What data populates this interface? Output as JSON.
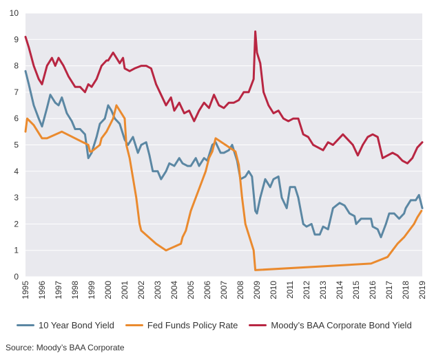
{
  "chart_data": {
    "type": "line",
    "title": "",
    "xlabel": "",
    "ylabel": "",
    "x_ticks": [
      "1995",
      "1996",
      "1997",
      "1998",
      "1999",
      "2000",
      "2001",
      "2002",
      "2003",
      "2004",
      "2005",
      "2006",
      "2007",
      "2008",
      "2009",
      "2010",
      "2011",
      "2012",
      "2013",
      "2014",
      "2015",
      "2016",
      "2017",
      "2018",
      "2019"
    ],
    "y_ticks": [
      "0",
      "1",
      "2",
      "3",
      "4",
      "5",
      "6",
      "7",
      "8",
      "9",
      "10"
    ],
    "xlim": [
      1995,
      2019
    ],
    "ylim": [
      0,
      10
    ],
    "grid": "horizontal",
    "background": "#e9e9ee",
    "legend_position": "bottom",
    "series": [
      {
        "name": "10 Year Bond Yield",
        "color": "#5b87a3",
        "x": [
          1995.0,
          1995.2,
          1995.5,
          1995.8,
          1996.0,
          1996.3,
          1996.5,
          1996.8,
          1997.0,
          1997.2,
          1997.5,
          1997.8,
          1998.0,
          1998.3,
          1998.6,
          1998.8,
          1999.0,
          1999.3,
          1999.5,
          1999.8,
          2000.0,
          2000.2,
          2000.4,
          2000.7,
          2001.0,
          2001.2,
          2001.5,
          2001.8,
          2002.0,
          2002.3,
          2002.5,
          2002.7,
          2003.0,
          2003.2,
          2003.5,
          2003.7,
          2004.0,
          2004.3,
          2004.5,
          2004.8,
          2005.0,
          2005.3,
          2005.5,
          2005.8,
          2006.0,
          2006.3,
          2006.5,
          2006.8,
          2007.0,
          2007.3,
          2007.5,
          2007.8,
          2008.0,
          2008.3,
          2008.5,
          2008.7,
          2008.9,
          2009.0,
          2009.2,
          2009.5,
          2009.8,
          2010.0,
          2010.3,
          2010.5,
          2010.8,
          2011.0,
          2011.3,
          2011.5,
          2011.8,
          2012.0,
          2012.3,
          2012.5,
          2012.8,
          2013.0,
          2013.3,
          2013.6,
          2013.8,
          2014.0,
          2014.3,
          2014.6,
          2014.9,
          2015.0,
          2015.3,
          2015.6,
          2015.9,
          2016.0,
          2016.3,
          2016.5,
          2016.8,
          2017.0,
          2017.3,
          2017.6,
          2017.9,
          2018.0,
          2018.3,
          2018.6,
          2018.8,
          2019.0
        ],
        "values": [
          7.8,
          7.3,
          6.5,
          6.0,
          5.7,
          6.4,
          6.9,
          6.6,
          6.5,
          6.8,
          6.2,
          5.9,
          5.6,
          5.6,
          5.4,
          4.5,
          4.7,
          5.3,
          5.8,
          6.0,
          6.5,
          6.3,
          6.0,
          5.8,
          5.2,
          5.0,
          5.3,
          4.7,
          5.0,
          5.1,
          4.6,
          4.0,
          4.0,
          3.7,
          4.0,
          4.3,
          4.2,
          4.5,
          4.3,
          4.2,
          4.2,
          4.5,
          4.2,
          4.5,
          4.4,
          5.0,
          5.1,
          4.7,
          4.7,
          4.8,
          5.0,
          4.4,
          3.7,
          3.8,
          4.0,
          3.8,
          2.5,
          2.4,
          3.0,
          3.7,
          3.4,
          3.7,
          3.8,
          3.0,
          2.6,
          3.4,
          3.4,
          3.0,
          2.0,
          1.9,
          2.0,
          1.6,
          1.6,
          1.9,
          1.8,
          2.6,
          2.7,
          2.8,
          2.7,
          2.4,
          2.3,
          2.0,
          2.2,
          2.2,
          2.2,
          1.9,
          1.8,
          1.5,
          2.0,
          2.4,
          2.4,
          2.2,
          2.4,
          2.6,
          2.9,
          2.9,
          3.1,
          2.6
        ]
      },
      {
        "name": "Fed Funds Policy Rate",
        "color": "#ea8a2e",
        "x": [
          1995.0,
          1995.1,
          1995.5,
          1996.0,
          1996.2,
          1996.3,
          1997.2,
          1998.8,
          1998.9,
          1999.0,
          1999.5,
          1999.6,
          1999.9,
          2000.1,
          2000.3,
          2000.5,
          2001.0,
          2001.1,
          2001.3,
          2001.5,
          2001.7,
          2001.9,
          2002.0,
          2002.9,
          2003.5,
          2004.4,
          2004.5,
          2004.7,
          2004.9,
          2005.0,
          2005.3,
          2005.6,
          2005.9,
          2006.1,
          2006.3,
          2006.5,
          2007.7,
          2007.8,
          2007.9,
          2008.1,
          2008.3,
          2008.8,
          2008.9,
          2015.9,
          2016.9,
          2017.2,
          2017.5,
          2017.9,
          2018.2,
          2018.5,
          2018.7,
          2018.95
        ],
        "values": [
          5.5,
          6.0,
          5.75,
          5.25,
          5.25,
          5.25,
          5.5,
          5.0,
          4.75,
          4.75,
          5.0,
          5.25,
          5.5,
          5.75,
          6.0,
          6.5,
          6.0,
          5.0,
          4.5,
          3.75,
          3.0,
          2.0,
          1.75,
          1.25,
          1.0,
          1.25,
          1.5,
          1.75,
          2.25,
          2.5,
          3.0,
          3.5,
          4.0,
          4.5,
          4.75,
          5.25,
          4.75,
          4.5,
          4.25,
          3.0,
          2.0,
          1.0,
          0.25,
          0.5,
          0.75,
          1.0,
          1.25,
          1.5,
          1.75,
          2.0,
          2.25,
          2.5
        ]
      },
      {
        "name": "Moody's BAA Corporate Bond Yield",
        "color": "#b82642",
        "x": [
          1995.0,
          1995.2,
          1995.5,
          1995.8,
          1996.0,
          1996.3,
          1996.6,
          1996.8,
          1997.0,
          1997.3,
          1997.6,
          1998.0,
          1998.3,
          1998.6,
          1998.8,
          1999.0,
          1999.3,
          1999.6,
          1999.9,
          2000.0,
          2000.3,
          2000.5,
          2000.7,
          2000.9,
          2001.0,
          2001.3,
          2001.6,
          2002.0,
          2002.3,
          2002.6,
          2002.9,
          2003.2,
          2003.5,
          2003.8,
          2004.0,
          2004.3,
          2004.6,
          2004.9,
          2005.2,
          2005.5,
          2005.8,
          2006.1,
          2006.4,
          2006.7,
          2007.0,
          2007.3,
          2007.6,
          2007.9,
          2008.2,
          2008.5,
          2008.8,
          2008.9,
          2009.0,
          2009.2,
          2009.4,
          2009.7,
          2010.0,
          2010.3,
          2010.6,
          2010.9,
          2011.2,
          2011.5,
          2011.8,
          2012.1,
          2012.4,
          2012.7,
          2013.0,
          2013.3,
          2013.6,
          2013.9,
          2014.2,
          2014.5,
          2014.8,
          2015.1,
          2015.4,
          2015.7,
          2016.0,
          2016.3,
          2016.6,
          2016.9,
          2017.2,
          2017.5,
          2017.8,
          2018.1,
          2018.4,
          2018.7,
          2019.0
        ],
        "values": [
          9.1,
          8.7,
          8.0,
          7.5,
          7.3,
          8.0,
          8.3,
          8.0,
          8.3,
          8.0,
          7.6,
          7.2,
          7.2,
          7.0,
          7.3,
          7.2,
          7.5,
          8.0,
          8.2,
          8.2,
          8.5,
          8.3,
          8.1,
          8.3,
          7.9,
          7.8,
          7.9,
          8.0,
          8.0,
          7.9,
          7.3,
          6.9,
          6.5,
          6.8,
          6.3,
          6.6,
          6.2,
          6.3,
          5.9,
          6.3,
          6.6,
          6.4,
          6.9,
          6.5,
          6.4,
          6.6,
          6.6,
          6.7,
          7.0,
          7.0,
          7.5,
          9.3,
          8.5,
          8.1,
          7.0,
          6.5,
          6.2,
          6.3,
          6.0,
          5.9,
          6.0,
          6.0,
          5.4,
          5.3,
          5.0,
          4.9,
          4.8,
          5.1,
          5.0,
          5.2,
          5.4,
          5.2,
          5.0,
          4.6,
          5.0,
          5.3,
          5.4,
          5.3,
          4.5,
          4.6,
          4.7,
          4.6,
          4.4,
          4.3,
          4.5,
          4.9,
          5.1
        ]
      }
    ]
  },
  "legend": {
    "items": [
      {
        "label": "10 Year Bond Yield",
        "color": "#5b87a3"
      },
      {
        "label": "Fed Funds Policy Rate",
        "color": "#ea8a2e"
      },
      {
        "label": "Moody’s BAA Corporate Bond Yield",
        "color": "#b82642"
      }
    ]
  },
  "source": "Source: Moody’s BAA Corporate"
}
